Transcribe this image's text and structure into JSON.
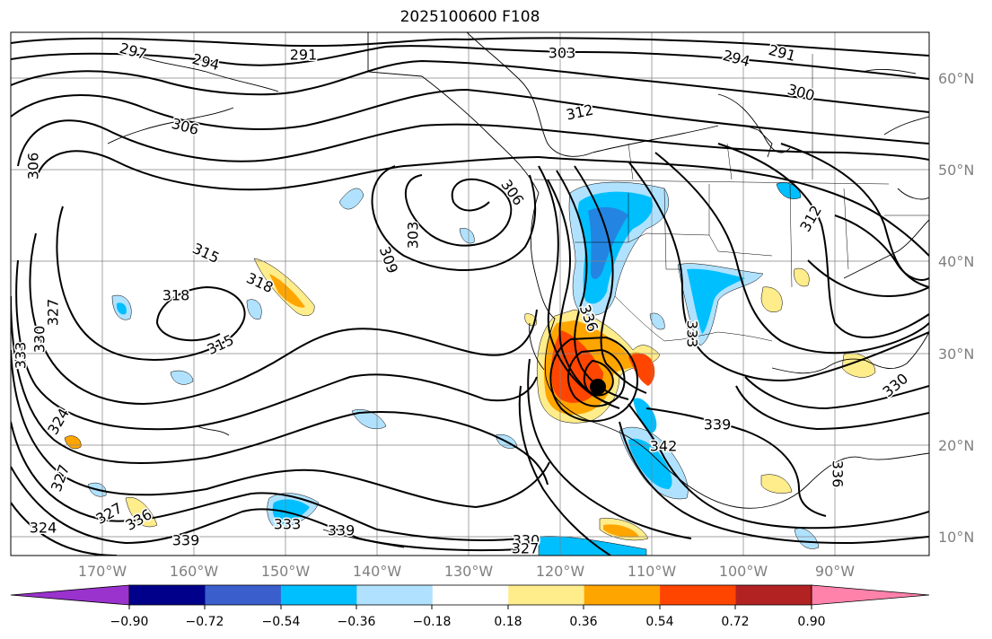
{
  "title": "2025100600 F108",
  "lat_labels": [
    "60°N",
    "50°N",
    "40°N",
    "30°N",
    "20°N",
    "10°N"
  ],
  "lon_labels": [
    "170°W",
    "160°W",
    "150°W",
    "140°W",
    "130°W",
    "120°W",
    "110°W",
    "100°W",
    "90°W"
  ],
  "colorbar": {
    "ticks": [
      "−0.90",
      "−0.72",
      "−0.54",
      "−0.36",
      "−0.18",
      "0.18",
      "0.36",
      "0.54",
      "0.72",
      "0.90"
    ],
    "colors": [
      "#9a32cd",
      "#00008b",
      "#3a5fcd",
      "#00bfff",
      "#b0e2ff",
      "#ffffff",
      "#ffec8b",
      "#ffa500",
      "#ff4500",
      "#b22222",
      "#ff82ab"
    ]
  },
  "contour_labels": [
    "297",
    "294",
    "291",
    "303",
    "294",
    "291",
    "300",
    "306",
    "312",
    "309",
    "303",
    "306",
    "306",
    "315",
    "318",
    "318",
    "327",
    "330",
    "333",
    "315",
    "324",
    "327",
    "327",
    "324",
    "336",
    "339",
    "333",
    "339",
    "330",
    "327",
    "336",
    "339",
    "342",
    "330",
    "336",
    "312",
    "333"
  ],
  "colors": {
    "outline": "#000000",
    "grid": "#808080",
    "marker": "#000000"
  }
}
